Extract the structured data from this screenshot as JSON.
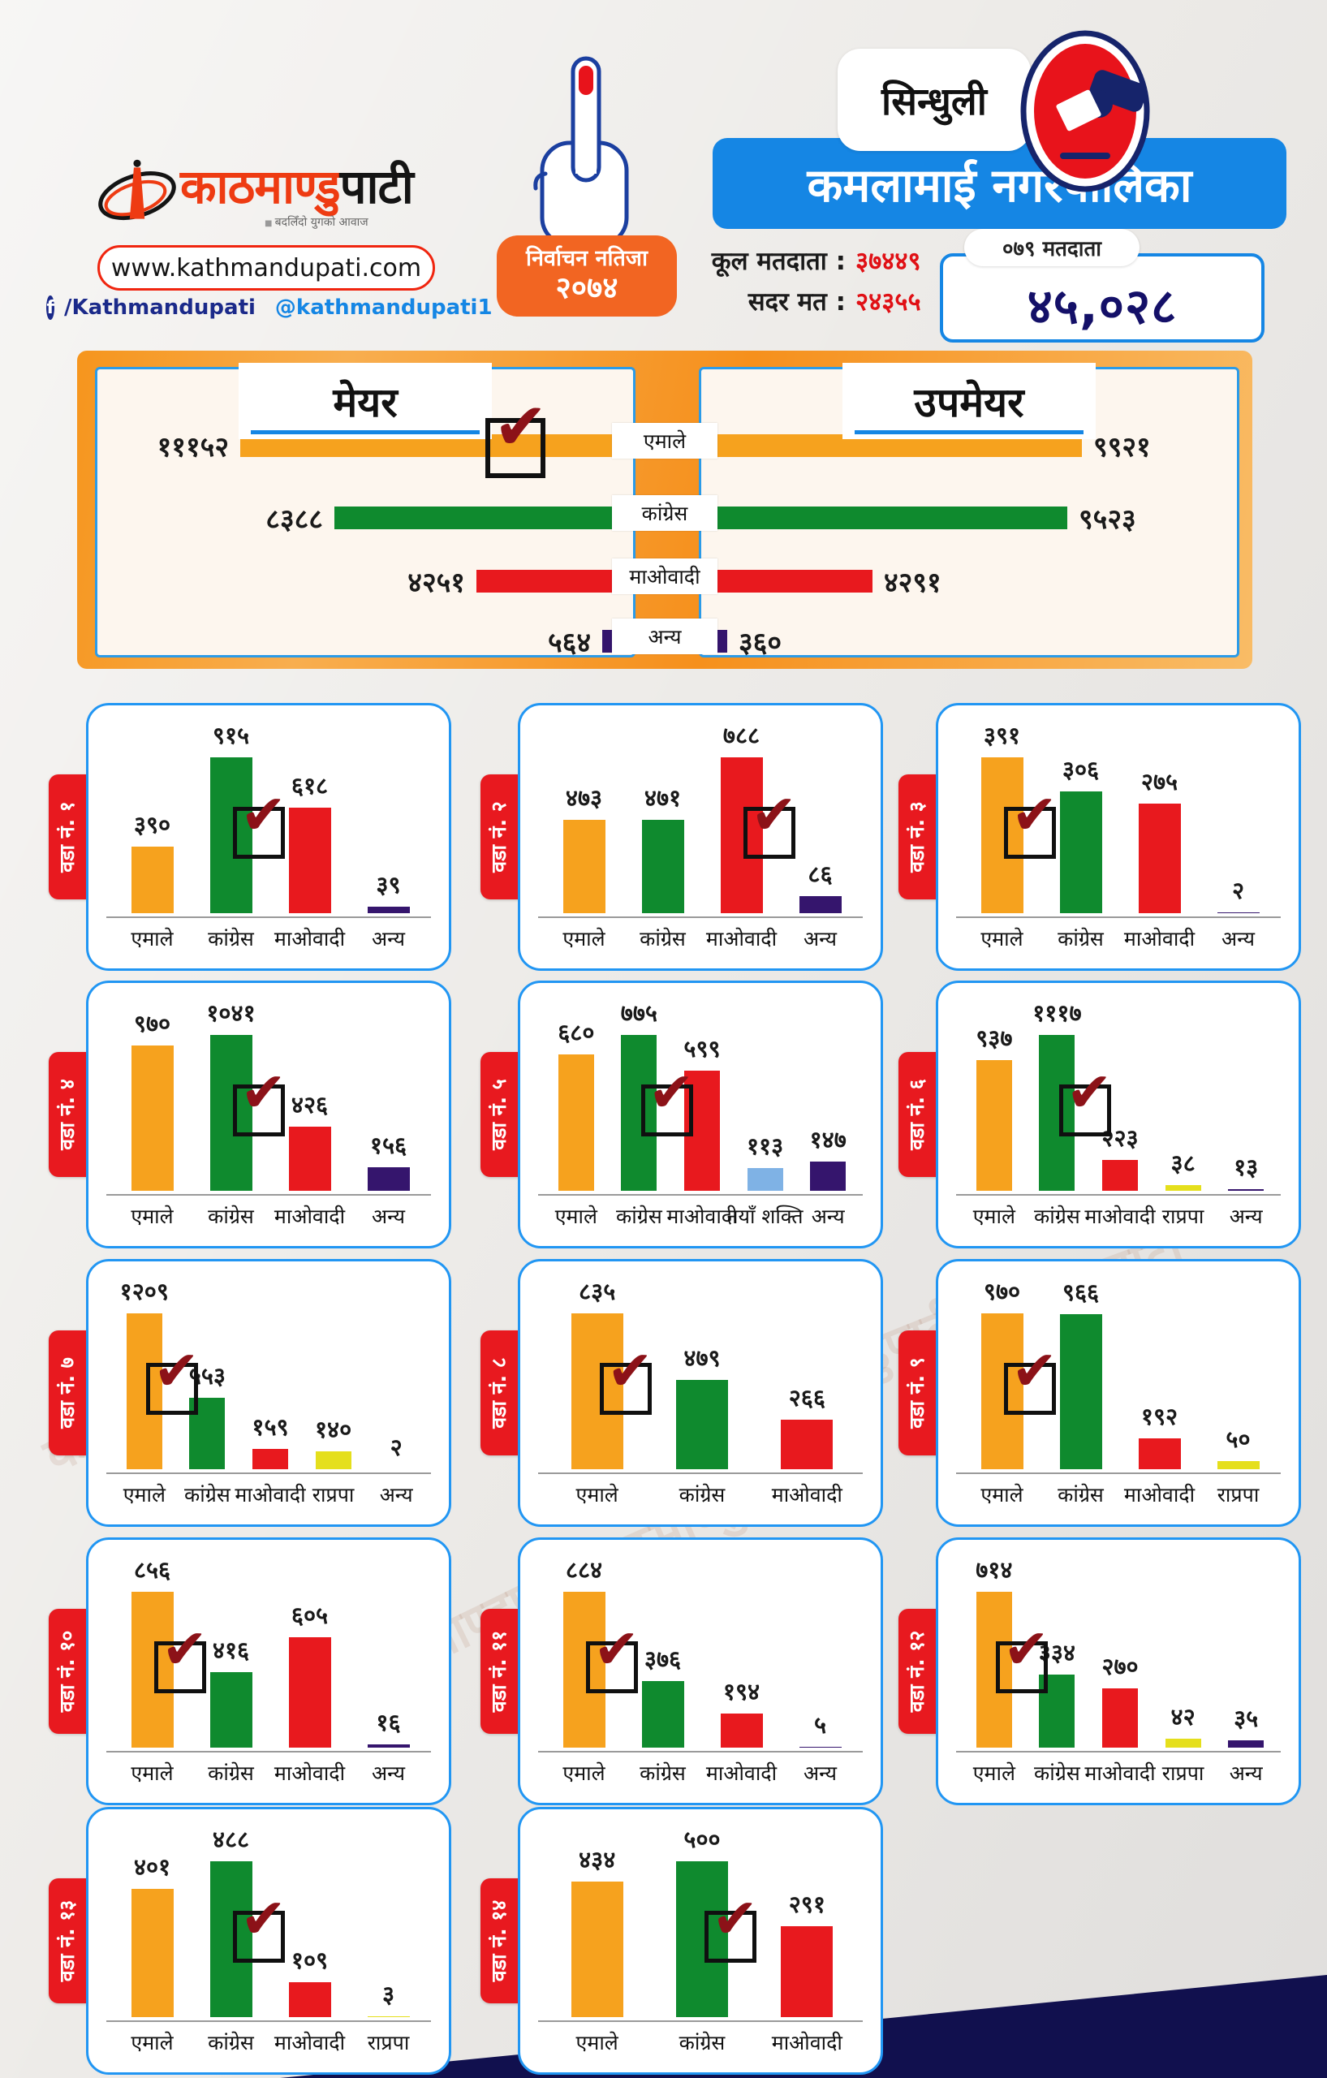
{
  "brand": {
    "logo_red": "काठमाण्डु",
    "logo_black": "पाटी",
    "tagline": "बदलिँदो युगको आवाज",
    "website": "www.kathmandupati.com",
    "facebook_handle": "/Kathmandupati",
    "twitter_handle": "@kathmandupati1",
    "watermark": "काठमाण्डुपाटी"
  },
  "header": {
    "district": "सिन्धुली",
    "municipality": "कमलामाई नगरपालिका",
    "badge_line1": "निर्वाचन नतिजा",
    "badge_line2": "२०७४",
    "total_voters_label": "कूल मतदाता :",
    "total_voters_value": "३७४४९",
    "valid_votes_label": "सदर मत :",
    "valid_votes_value": "२४३५५",
    "voters_2079_label": "०७९ मतदाता",
    "voters_2079_value": "४५,०२८"
  },
  "party_colors": {
    "एमाले": "#F6A21E",
    "कांग्रेस": "#0F8A2E",
    "माओवादी": "#E8191E",
    "राप्रपा": "#E5DF1C",
    "नयाँ शक्ति": "#7FB2E5",
    "अन्य": "#35156D"
  },
  "colors": {
    "frame_orange": "#F28C1E",
    "badge_orange": "#F26522",
    "title_blue": "#1586E4",
    "card_border_blue": "#2196F3",
    "tab_red": "#E8191F",
    "navy": "#141068",
    "check_red": "#8C1218",
    "logo_red": "#EE3B12",
    "website_border_red": "#F0250F",
    "facebook_navy": "#1B2A8A",
    "twitter_blue": "#1D9BF0",
    "footer_navy": "#11104E",
    "panel_cream": "#FDF6EE"
  },
  "chart_data": [
    {
      "id": "mayor",
      "type": "bar",
      "orientation": "horizontal",
      "title": "मेयर",
      "categories": [
        "एमाले",
        "कांग्रेस",
        "माओवादी",
        "अन्य"
      ],
      "values": [
        11152,
        8388,
        4251,
        564
      ],
      "value_labels": [
        "१११५२",
        "८३८८",
        "४२५१",
        "५६४"
      ],
      "winner_index": 0,
      "show_check": true
    },
    {
      "id": "deputy-mayor",
      "type": "bar",
      "orientation": "horizontal",
      "title": "उपमेयर",
      "categories": [
        "एमाले",
        "कांग्रेस",
        "माओवादी",
        "अन्य"
      ],
      "values": [
        9921,
        9523,
        4291,
        360
      ],
      "value_labels": [
        "९९२१",
        "९५२३",
        "४२९१",
        "३६०"
      ],
      "winner_index": 0,
      "show_check": false
    },
    {
      "id": "ward-1",
      "type": "bar",
      "orientation": "vertical",
      "tab": "वडा नं. १",
      "categories": [
        "एमाले",
        "कांग्रेस",
        "माओवादी",
        "अन्य"
      ],
      "values": [
        390,
        915,
        618,
        39
      ],
      "value_labels": [
        "३९०",
        "९१५",
        "६१८",
        "३९"
      ],
      "winner_index": 1
    },
    {
      "id": "ward-2",
      "type": "bar",
      "orientation": "vertical",
      "tab": "वडा नं. २",
      "categories": [
        "एमाले",
        "कांग्रेस",
        "माओवादी",
        "अन्य"
      ],
      "values": [
        473,
        471,
        788,
        86
      ],
      "value_labels": [
        "४७३",
        "४७१",
        "७८८",
        "८६"
      ],
      "winner_index": 2
    },
    {
      "id": "ward-3",
      "type": "bar",
      "orientation": "vertical",
      "tab": "वडा नं. ३",
      "categories": [
        "एमाले",
        "कांग्रेस",
        "माओवादी",
        "अन्य"
      ],
      "values": [
        391,
        306,
        275,
        2
      ],
      "value_labels": [
        "३९१",
        "३०६",
        "२७५",
        "२"
      ],
      "winner_index": 0
    },
    {
      "id": "ward-4",
      "type": "bar",
      "orientation": "vertical",
      "tab": "वडा नं. ४",
      "categories": [
        "एमाले",
        "कांग्रेस",
        "माओवादी",
        "अन्य"
      ],
      "values": [
        970,
        1041,
        426,
        156
      ],
      "value_labels": [
        "९७०",
        "१०४१",
        "४२६",
        "१५६"
      ],
      "winner_index": 1
    },
    {
      "id": "ward-5",
      "type": "bar",
      "orientation": "vertical",
      "tab": "वडा नं. ५",
      "categories": [
        "एमाले",
        "कांग्रेस",
        "माओवादी",
        "नयाँ शक्ति",
        "अन्य"
      ],
      "values": [
        680,
        775,
        599,
        113,
        147
      ],
      "value_labels": [
        "६८०",
        "७७५",
        "५९९",
        "११३",
        "१४७"
      ],
      "winner_index": 1
    },
    {
      "id": "ward-6",
      "type": "bar",
      "orientation": "vertical",
      "tab": "वडा नं. ६",
      "categories": [
        "एमाले",
        "कांग्रेस",
        "माओवादी",
        "राप्रपा",
        "अन्य"
      ],
      "values": [
        937,
        1117,
        223,
        38,
        13
      ],
      "value_labels": [
        "९३७",
        "१११७",
        "२२३",
        "३८",
        "१३"
      ],
      "winner_index": 1
    },
    {
      "id": "ward-7",
      "type": "bar",
      "orientation": "vertical",
      "tab": "वडा नं. ७",
      "categories": [
        "एमाले",
        "कांग्रेस",
        "माओवादी",
        "राप्रपा",
        "अन्य"
      ],
      "values": [
        1209,
        553,
        159,
        140,
        2
      ],
      "value_labels": [
        "१२०९",
        "५५३",
        "१५९",
        "१४०",
        "२"
      ],
      "winner_index": 0
    },
    {
      "id": "ward-8",
      "type": "bar",
      "orientation": "vertical",
      "tab": "वडा नं. ८",
      "categories": [
        "एमाले",
        "कांग्रेस",
        "माओवादी"
      ],
      "values": [
        835,
        479,
        266
      ],
      "value_labels": [
        "८३५",
        "४७९",
        "२६६"
      ],
      "winner_index": 0
    },
    {
      "id": "ward-9",
      "type": "bar",
      "orientation": "vertical",
      "tab": "वडा नं. ९",
      "categories": [
        "एमाले",
        "कांग्रेस",
        "माओवादी",
        "राप्रपा"
      ],
      "values": [
        970,
        966,
        192,
        50
      ],
      "value_labels": [
        "९७०",
        "९६६",
        "१९२",
        "५०"
      ],
      "winner_index": 0
    },
    {
      "id": "ward-10",
      "type": "bar",
      "orientation": "vertical",
      "tab": "वडा नं. १०",
      "categories": [
        "एमाले",
        "कांग्रेस",
        "माओवादी",
        "अन्य"
      ],
      "values": [
        856,
        416,
        605,
        16
      ],
      "value_labels": [
        "८५६",
        "४१६",
        "६०५",
        "१६"
      ],
      "winner_index": 0
    },
    {
      "id": "ward-11",
      "type": "bar",
      "orientation": "vertical",
      "tab": "वडा नं. ११",
      "categories": [
        "एमाले",
        "कांग्रेस",
        "माओवादी",
        "अन्य"
      ],
      "values": [
        884,
        376,
        194,
        5
      ],
      "value_labels": [
        "८८४",
        "३७६",
        "१९४",
        "५"
      ],
      "winner_index": 0
    },
    {
      "id": "ward-12",
      "type": "bar",
      "orientation": "vertical",
      "tab": "वडा नं. १२",
      "categories": [
        "एमाले",
        "कांग्रेस",
        "माओवादी",
        "राप्रपा",
        "अन्य"
      ],
      "values": [
        714,
        334,
        270,
        42,
        35
      ],
      "value_labels": [
        "७१४",
        "३३४",
        "२७०",
        "४२",
        "३५"
      ],
      "winner_index": 0
    },
    {
      "id": "ward-13",
      "type": "bar",
      "orientation": "vertical",
      "tab": "वडा नं. १३",
      "categories": [
        "एमाले",
        "कांग्रेस",
        "माओवादी",
        "राप्रपा"
      ],
      "values": [
        401,
        488,
        109,
        3
      ],
      "value_labels": [
        "४०१",
        "४८८",
        "१०९",
        "३"
      ],
      "winner_index": 1
    },
    {
      "id": "ward-14",
      "type": "bar",
      "orientation": "vertical",
      "tab": "वडा नं. १४",
      "categories": [
        "एमाले",
        "कांग्रेस",
        "माओवादी"
      ],
      "values": [
        434,
        500,
        291
      ],
      "value_labels": [
        "४३४",
        "५००",
        "२९१"
      ],
      "winner_index": 1
    }
  ]
}
